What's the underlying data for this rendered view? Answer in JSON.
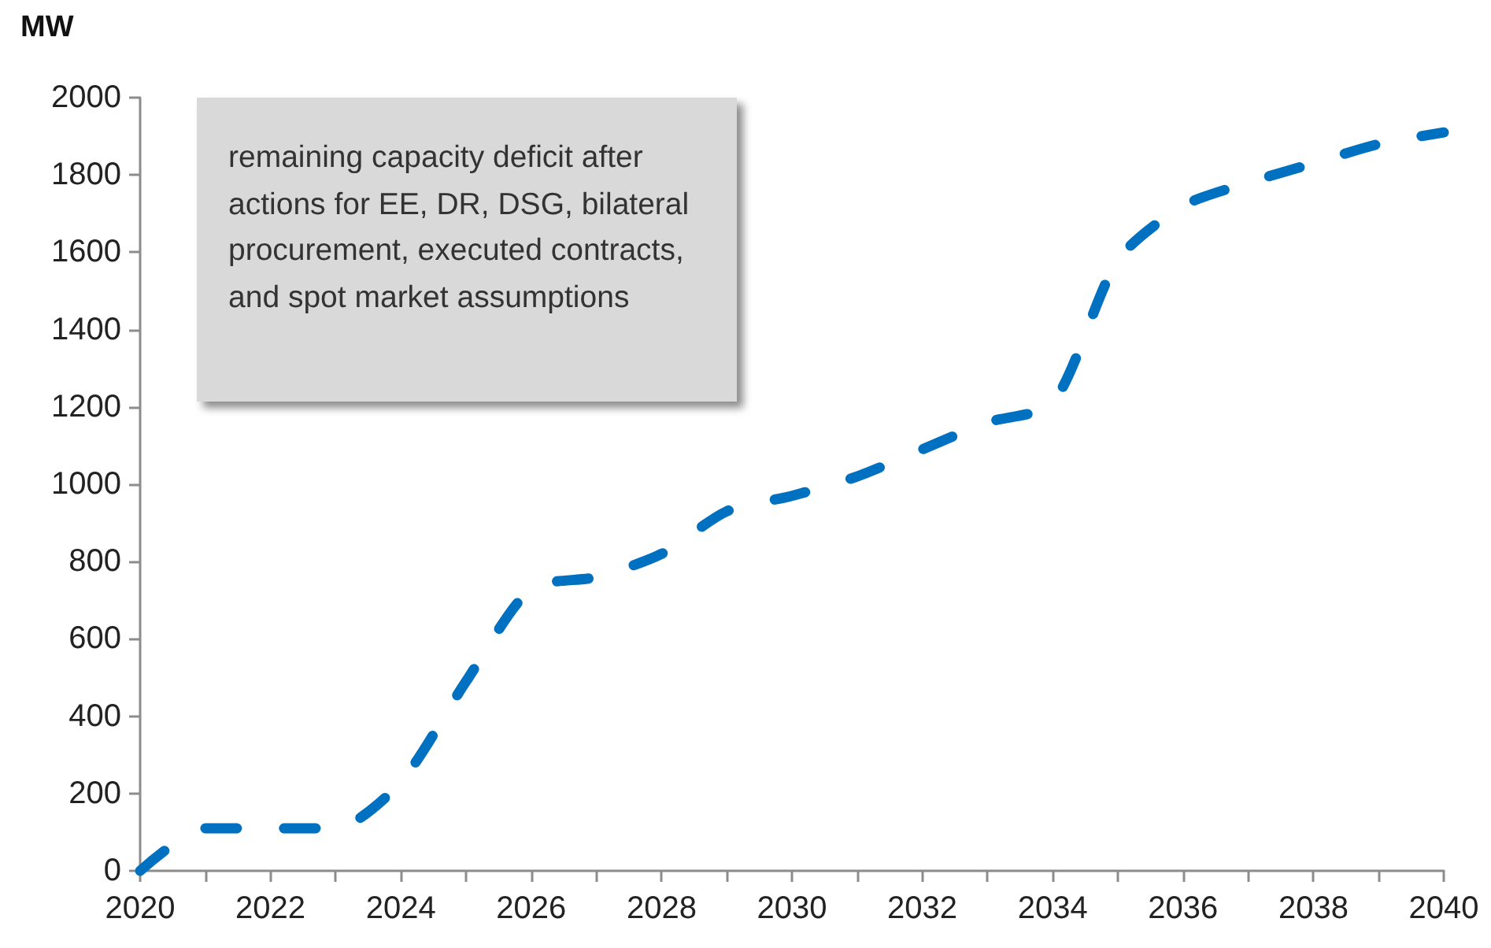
{
  "chart_data": {
    "type": "line",
    "ylabel": "MW",
    "annotations": [
      "remaining capacity deficit after actions for EE, DR, DSG, bilateral procurement, executed contracts, and spot market assumptions"
    ],
    "x": [
      2020,
      2021,
      2022,
      2023,
      2024,
      2025,
      2026,
      2027,
      2028,
      2029,
      2030,
      2031,
      2032,
      2033,
      2034,
      2035,
      2036,
      2037,
      2038,
      2039,
      2040
    ],
    "values": [
      0,
      110,
      110,
      110,
      230,
      490,
      730,
      760,
      820,
      930,
      970,
      1020,
      1090,
      1160,
      1210,
      1580,
      1720,
      1780,
      1830,
      1880,
      1910
    ],
    "color": "#0070c0",
    "xlim": [
      2020,
      2040
    ],
    "xticks": [
      2020,
      {
        "value": 2021,
        "label": null
      },
      2022,
      {
        "value": 2023,
        "label": null
      },
      2024,
      {
        "value": 2025,
        "label": null
      },
      2026,
      {
        "value": 2027,
        "label": null
      },
      2028,
      {
        "value": 2029,
        "label": null
      },
      2030,
      {
        "value": 2031,
        "label": null
      },
      2032,
      {
        "value": 2033,
        "label": null
      },
      2034,
      {
        "value": 2035,
        "label": null
      },
      2036,
      {
        "value": 2037,
        "label": null
      },
      2038,
      {
        "value": 2039,
        "label": null
      },
      2040
    ],
    "ylim": [
      0,
      2000
    ],
    "yticks": [
      0,
      200,
      400,
      600,
      800,
      1000,
      1200,
      1400,
      1600,
      1800,
      2000
    ],
    "marker": "none",
    "line_style": "dashed"
  }
}
